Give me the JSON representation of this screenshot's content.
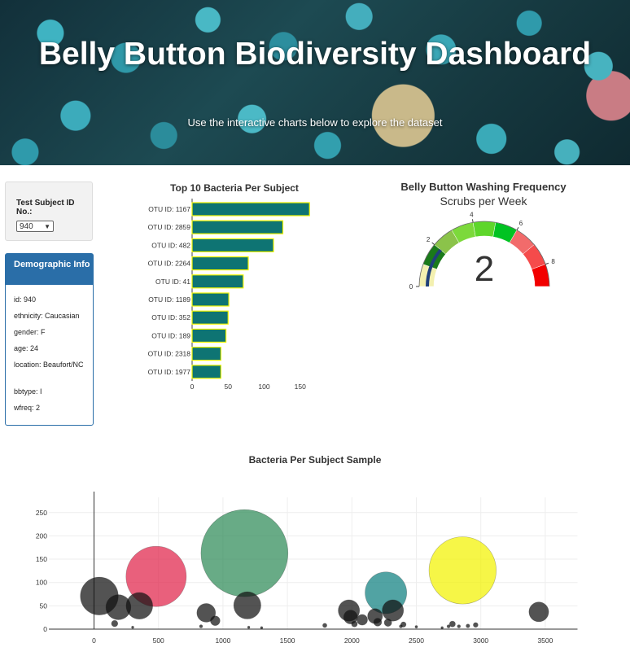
{
  "header": {
    "title": "Belly Button Biodiversity Dashboard",
    "subtitle": "Use the interactive charts below to explore the dataset"
  },
  "selector": {
    "label": "Test Subject ID No.:",
    "selected": "940"
  },
  "demographics": {
    "heading": "Demographic Info",
    "rows": [
      "id: 940",
      "ethnicity: Caucasian",
      "gender: F",
      "age: 24",
      "location: Beaufort/NC",
      "bbtype: I",
      "wfreq: 2"
    ]
  },
  "colors": {
    "accent": "#2a6ea8",
    "bar": "#0e7473",
    "bar_outline": "#f0f500"
  },
  "chart_data": [
    {
      "type": "bar",
      "title": "Top 10 Bacteria Per Subject",
      "orientation": "horizontal",
      "categories": [
        "OTU ID: 1167",
        "OTU ID: 2859",
        "OTU ID: 482",
        "OTU ID: 2264",
        "OTU ID: 41",
        "OTU ID: 1189",
        "OTU ID: 352",
        "OTU ID: 189",
        "OTU ID: 2318",
        "OTU ID: 1977"
      ],
      "values": [
        163,
        126,
        113,
        78,
        71,
        51,
        50,
        47,
        40,
        40
      ],
      "xlim": [
        0,
        170
      ],
      "xticks": [
        0,
        50,
        100,
        150
      ]
    },
    {
      "type": "gauge",
      "title": "Belly Button Washing Frequency",
      "subtitle": "Scrubs per Week",
      "value": 2,
      "range": [
        0,
        9
      ],
      "ticks": [
        0,
        2,
        4,
        6,
        8
      ],
      "steps": [
        {
          "range": [
            0,
            1
          ],
          "color": "#f3f0b0"
        },
        {
          "range": [
            1,
            2
          ],
          "color": "#1a7a1a"
        },
        {
          "range": [
            2,
            3
          ],
          "color": "#8bc34a"
        },
        {
          "range": [
            3,
            4
          ],
          "color": "#7cd93b"
        },
        {
          "range": [
            4,
            5
          ],
          "color": "#5ed62b"
        },
        {
          "range": [
            5,
            6
          ],
          "color": "#00c322"
        },
        {
          "range": [
            6,
            7
          ],
          "color": "#f26b6b"
        },
        {
          "range": [
            7,
            8
          ],
          "color": "#f54b4b"
        },
        {
          "range": [
            8,
            9
          ],
          "color": "#f20000"
        }
      ]
    },
    {
      "type": "scatter",
      "title": "Bacteria Per Subject Sample",
      "xlim": [
        -350,
        3750
      ],
      "ylim": [
        0,
        265
      ],
      "xticks": [
        0,
        500,
        1000,
        1500,
        2000,
        2500,
        3000,
        3500
      ],
      "yticks": [
        0,
        50,
        100,
        150,
        200,
        250
      ],
      "points": [
        {
          "x": 1167,
          "y": 163,
          "size": 163,
          "color": "#2e8b57"
        },
        {
          "x": 2859,
          "y": 126,
          "size": 126,
          "color": "#f2f200"
        },
        {
          "x": 482,
          "y": 113,
          "size": 113,
          "color": "#e0224a"
        },
        {
          "x": 2264,
          "y": 78,
          "size": 78,
          "color": "#0e8080"
        },
        {
          "x": 41,
          "y": 71,
          "size": 71,
          "color": "#111111"
        },
        {
          "x": 189,
          "y": 47,
          "size": 47,
          "color": "#111111"
        },
        {
          "x": 352,
          "y": 50,
          "size": 50,
          "color": "#111111"
        },
        {
          "x": 1189,
          "y": 51,
          "size": 51,
          "color": "#111111"
        },
        {
          "x": 2318,
          "y": 40,
          "size": 40,
          "color": "#111111"
        },
        {
          "x": 1977,
          "y": 40,
          "size": 40,
          "color": "#111111"
        },
        {
          "x": 3450,
          "y": 37,
          "size": 37,
          "color": "#111111"
        },
        {
          "x": 870,
          "y": 35,
          "size": 35,
          "color": "#111111"
        },
        {
          "x": 2180,
          "y": 28,
          "size": 28,
          "color": "#111111"
        },
        {
          "x": 1990,
          "y": 26,
          "size": 26,
          "color": "#111111"
        },
        {
          "x": 2080,
          "y": 20,
          "size": 20,
          "color": "#111111"
        },
        {
          "x": 2200,
          "y": 15,
          "size": 15,
          "color": "#111111"
        },
        {
          "x": 940,
          "y": 18,
          "size": 18,
          "color": "#111111"
        },
        {
          "x": 2280,
          "y": 14,
          "size": 14,
          "color": "#111111"
        },
        {
          "x": 160,
          "y": 12,
          "size": 12,
          "color": "#111111"
        },
        {
          "x": 2400,
          "y": 10,
          "size": 10,
          "color": "#111111"
        },
        {
          "x": 2020,
          "y": 11,
          "size": 11,
          "color": "#111111"
        },
        {
          "x": 2780,
          "y": 11,
          "size": 11,
          "color": "#111111"
        },
        {
          "x": 2960,
          "y": 9,
          "size": 9,
          "color": "#111111"
        },
        {
          "x": 1790,
          "y": 8,
          "size": 8,
          "color": "#111111"
        },
        {
          "x": 2750,
          "y": 6,
          "size": 6,
          "color": "#111111"
        },
        {
          "x": 2900,
          "y": 7,
          "size": 7,
          "color": "#111111"
        },
        {
          "x": 830,
          "y": 6,
          "size": 6,
          "color": "#111111"
        },
        {
          "x": 2380,
          "y": 6,
          "size": 6,
          "color": "#111111"
        },
        {
          "x": 2830,
          "y": 6,
          "size": 6,
          "color": "#111111"
        },
        {
          "x": 2500,
          "y": 5,
          "size": 5,
          "color": "#111111"
        },
        {
          "x": 300,
          "y": 4,
          "size": 4,
          "color": "#111111"
        },
        {
          "x": 1200,
          "y": 4,
          "size": 4,
          "color": "#111111"
        },
        {
          "x": 1300,
          "y": 3,
          "size": 3,
          "color": "#111111"
        },
        {
          "x": 2700,
          "y": 3,
          "size": 3,
          "color": "#111111"
        }
      ]
    }
  ]
}
